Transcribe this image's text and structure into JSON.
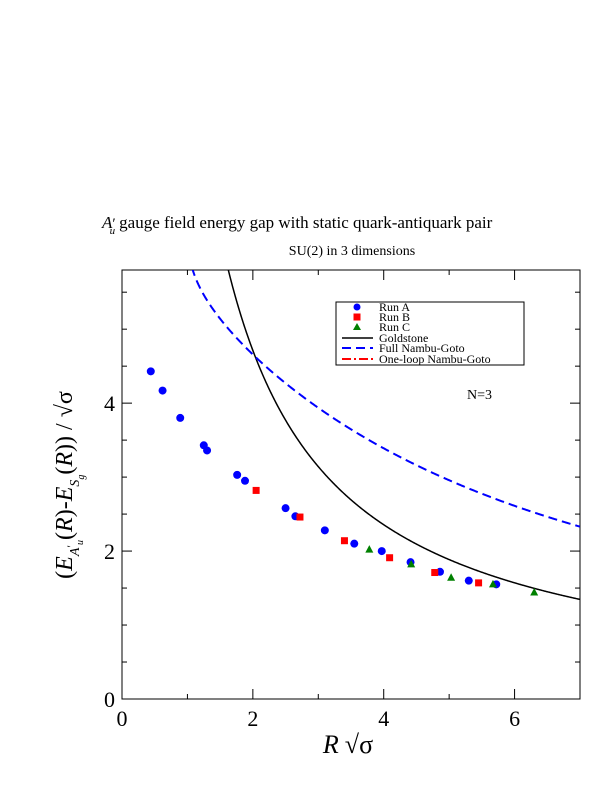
{
  "chart_data": {
    "type": "scatter",
    "title": "gauge field energy gap with static quark-antiquark pair",
    "title_symbol": "A",
    "title_symbol_sub": "u",
    "title_symbol_prime": "′",
    "subtitle": "SU(2) in 3 dimensions",
    "annotation": "N=3",
    "xlabel": "R √σ",
    "ylabel": "(E_{A'_u}(R)-E_{S_g}(R)) / √σ",
    "xlim": [
      0,
      7
    ],
    "ylim": [
      0,
      5.8
    ],
    "x_ticks": [
      0,
      2,
      4,
      6
    ],
    "y_ticks": [
      0,
      2,
      4
    ],
    "x_tick_labels": [
      "0",
      "2",
      "4",
      "6"
    ],
    "y_tick_labels": [
      "0",
      "2",
      "4"
    ],
    "grid": false,
    "legend_position": "top-right",
    "series": [
      {
        "name": "Run A",
        "marker": "circle",
        "color": "#0000ff",
        "x": [
          0.44,
          0.62,
          0.89,
          1.25,
          1.3,
          1.76,
          1.88,
          2.5,
          2.65,
          3.1,
          3.55,
          3.97,
          4.41,
          4.86,
          5.3,
          5.72
        ],
        "y": [
          4.43,
          4.17,
          3.8,
          3.43,
          3.36,
          3.03,
          2.95,
          2.58,
          2.47,
          2.28,
          2.1,
          2.0,
          1.85,
          1.72,
          1.6,
          1.55
        ]
      },
      {
        "name": "Run B",
        "marker": "square",
        "color": "#ff0000",
        "x": [
          2.05,
          2.72,
          3.4,
          4.09,
          4.78,
          5.45
        ],
        "y": [
          2.82,
          2.46,
          2.14,
          1.91,
          1.71,
          1.57
        ]
      },
      {
        "name": "Run C",
        "marker": "triangle",
        "color": "#008000",
        "x": [
          3.78,
          4.42,
          5.03,
          5.67,
          6.3
        ],
        "y": [
          2.02,
          1.82,
          1.64,
          1.55,
          1.44
        ]
      },
      {
        "name": "Goldstone",
        "line": "solid",
        "color": "#000000",
        "function": "goldstone"
      },
      {
        "name": "Full Nambu-Goto",
        "line": "dashed",
        "color": "#0000ff",
        "function": "full_nambu_goto"
      },
      {
        "name": "One-loop Nambu-Goto",
        "line": "dashdot",
        "color": "#ff0000",
        "function": "one_loop_nambu_goto"
      }
    ]
  }
}
